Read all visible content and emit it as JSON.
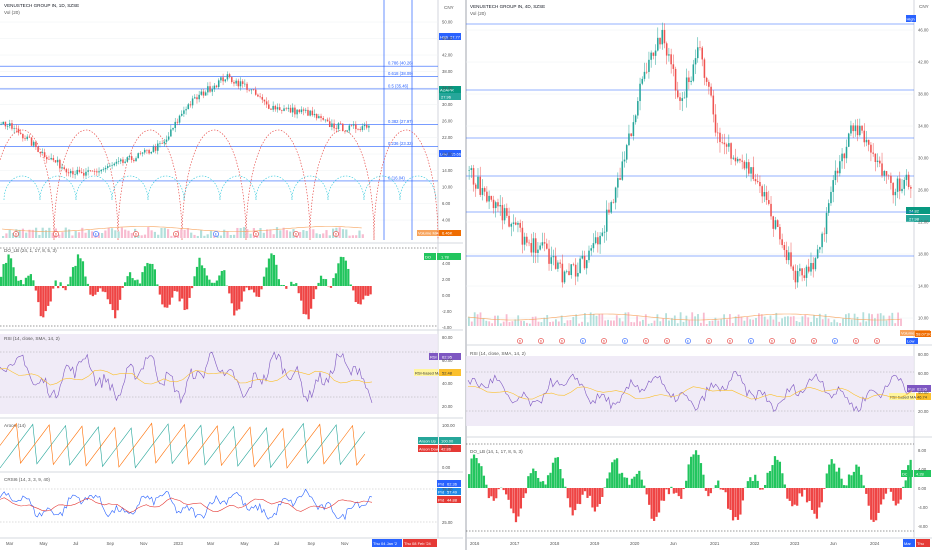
{
  "colors": {
    "up": "#26a69a",
    "down": "#ef5350",
    "fib_line": "#2962ff",
    "grid": "#eef0f3",
    "volume_ma": "#f7a35c",
    "osc_up": "#22c55e",
    "osc_down": "#ef4444",
    "rsi": "#7e57c2",
    "rsi_ma": "#fbc02d",
    "rsi_band": "#ede7f6",
    "arc_red": "#e53935",
    "arc_cyan": "#26c6da",
    "aroon_up": "#ff6d00",
    "aroon_down": "#26a69a",
    "stoch_k": "#2962ff",
    "stoch_d": "#e53935",
    "last_price_bg": "#089981",
    "highlight_bg": "#2962ff"
  },
  "left_chart": {
    "title": "VENUSTECH GROUP IN, 1D, SZSE",
    "volume_label": "Vol (20)",
    "axis_label": "CNY",
    "fib_levels": [
      {
        "label": "0.786 (40.26)",
        "price": 40.26
      },
      {
        "label": "0.618 (38.09)",
        "price": 38.09
      },
      {
        "label": "0.5 (35.46)",
        "price": 35.46
      },
      {
        "label": "0.382 (27.97)",
        "price": 27.97
      },
      {
        "label": "0.236 (23.32)",
        "price": 23.32
      },
      {
        "label": "0 (16.04)",
        "price": 16.04
      }
    ],
    "price_ticks": [
      "50.00",
      "46.00",
      "42.00",
      "38.00",
      "34.00",
      "30.00",
      "26.00",
      "22.00",
      "18.00",
      "14.00",
      "10.00",
      "6.00",
      "4.00"
    ],
    "badges": {
      "high": "High",
      "high_value": "37.77",
      "last": "ADAPR",
      "last_value": "27.96",
      "low": "Low",
      "low_value": "15.66",
      "volume": "Volume MA",
      "volume_value": "6.46K"
    },
    "oscillator": {
      "label": "DO_LB (24, 1, 17, 8, 5, 3)",
      "value": "1.78",
      "ticks": [
        "4.00",
        "2.00",
        "0.00",
        "-2.00",
        "-4.00"
      ]
    },
    "rsi": {
      "label": "RSI (14, close, SMA, 14, 2)",
      "value_label": "RSI",
      "value": "62.95",
      "ma_label": "RSI-based MA",
      "ma_value": "52.48",
      "ticks": [
        "80.00",
        "60.00",
        "40.00",
        "20.00"
      ]
    },
    "aroon": {
      "label": "Aroon (14)",
      "up_label": "Aroon Up",
      "up_value": "100.00",
      "down_label": "Aroon Down",
      "down_value": "42.86",
      "ticks": [
        "100.00",
        "50.00",
        "0.00"
      ]
    },
    "stoch": {
      "label": "CRSI6 (14, 3, 3, 9, 40)",
      "ticks": [
        "75.00",
        "25.00"
      ],
      "values": [
        {
          "label": "Prd",
          "value": "62.36"
        },
        {
          "label": "Prd",
          "value": "57.49"
        },
        {
          "label": "Prd",
          "value": "44.88"
        }
      ]
    },
    "x_labels": [
      "Mar",
      "May",
      "Jul",
      "Sep",
      "Nov",
      "2023",
      "Mar",
      "May",
      "Jul",
      "Sep",
      "Nov"
    ],
    "date_badges": [
      "Thu 04 Jan '2",
      "Thu 08 Feb '24"
    ],
    "event_markers": [
      "D",
      "D",
      "E",
      "D",
      "D",
      "E",
      "D",
      "D",
      "D"
    ]
  },
  "right_chart": {
    "title": "VENUSTECH GROUP IN, 4D, SZSE",
    "volume_label": "Vol (20)",
    "axis_label": "CNY",
    "price_ticks": [
      "46.00",
      "42.00",
      "38.00",
      "34.00",
      "30.00",
      "26.00",
      "22.00",
      "18.00",
      "14.00",
      "10.00"
    ],
    "badges": {
      "high": "High",
      "last": "24.82",
      "last2": "27.98",
      "low": "Low",
      "volume": "Volume MA",
      "volume_value": "58.071K"
    },
    "oscillator": {
      "label": "DO_LB (14, 1, 17, 8, 5, 3)",
      "value": "4.28",
      "ticks": [
        "8.00",
        "4.00",
        "0.00",
        "-4.00",
        "-8.00"
      ]
    },
    "rsi": {
      "label": "RSI (14, close, SMA, 14, 2)",
      "value_label": "RSI",
      "value": "62.95",
      "ma_label": "RSI-based MA",
      "ma_value": "46.74",
      "ticks": [
        "80.00",
        "60.00",
        "40.00",
        "20.00"
      ]
    },
    "x_labels": [
      "2016",
      "2017",
      "2018",
      "2019",
      "2020",
      "Jun",
      "2021",
      "2022",
      "2023",
      "Jun",
      "2024"
    ],
    "date_badges": [
      "Mar",
      "Thu"
    ],
    "event_markers": [
      "D",
      "D",
      "D",
      "E",
      "D",
      "E",
      "D",
      "D",
      "E",
      "D",
      "D",
      "E",
      "D",
      "D",
      "D",
      "E",
      "D",
      "D"
    ]
  },
  "chart_data": [
    {
      "type": "line",
      "title": "VENUSTECH GROUP IN, 1D, SZSE",
      "x": [
        "Mar",
        "May",
        "Jul",
        "Sep",
        "Nov",
        "2023",
        "Mar",
        "May",
        "Jul",
        "Sep",
        "Nov"
      ],
      "series": [
        {
          "values": [
            28.5,
            22.0,
            17.2,
            19.5,
            21.8,
            31.5,
            38.0,
            32.0,
            30.5,
            28.0,
            27.96
          ]
        }
      ],
      "ylim": [
        4,
        50
      ]
    },
    {
      "type": "line",
      "title": "VENUSTECH GROUP IN, 4D, SZSE",
      "x": [
        "2016",
        "2017",
        "2018",
        "2019",
        "2020",
        "Jun",
        "2021",
        "2022",
        "2023",
        "Jun",
        "2024"
      ],
      "series": [
        {
          "values": [
            28.0,
            20.5,
            16.0,
            22.0,
            40.0,
            44.0,
            31.0,
            16.0,
            35.0,
            27.0,
            27.98
          ]
        }
      ],
      "ylim": [
        10,
        46
      ]
    }
  ]
}
